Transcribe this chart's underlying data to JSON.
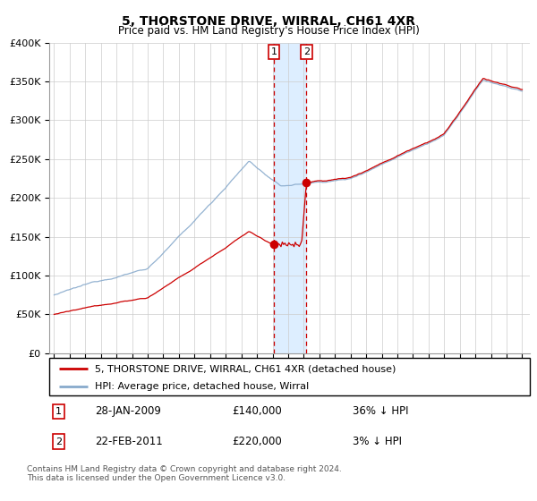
{
  "title": "5, THORSTONE DRIVE, WIRRAL, CH61 4XR",
  "subtitle": "Price paid vs. HM Land Registry's House Price Index (HPI)",
  "property_label": "5, THORSTONE DRIVE, WIRRAL, CH61 4XR (detached house)",
  "hpi_label": "HPI: Average price, detached house, Wirral",
  "property_color": "#cc0000",
  "hpi_color": "#88aacc",
  "highlight_color": "#ddeeff",
  "transaction1_x": 2009.08,
  "transaction1_price": 140000,
  "transaction1_date": "28-JAN-2009",
  "transaction1_hpi": "36% ↓ HPI",
  "transaction2_x": 2011.17,
  "transaction2_price": 220000,
  "transaction2_date": "22-FEB-2011",
  "transaction2_hpi": "3% ↓ HPI",
  "footer": "Contains HM Land Registry data © Crown copyright and database right 2024.\nThis data is licensed under the Open Government Licence v3.0.",
  "ylim": [
    0,
    400000
  ],
  "yticks": [
    0,
    50000,
    100000,
    150000,
    200000,
    250000,
    300000,
    350000,
    400000
  ],
  "year_start": 1995,
  "year_end": 2025
}
